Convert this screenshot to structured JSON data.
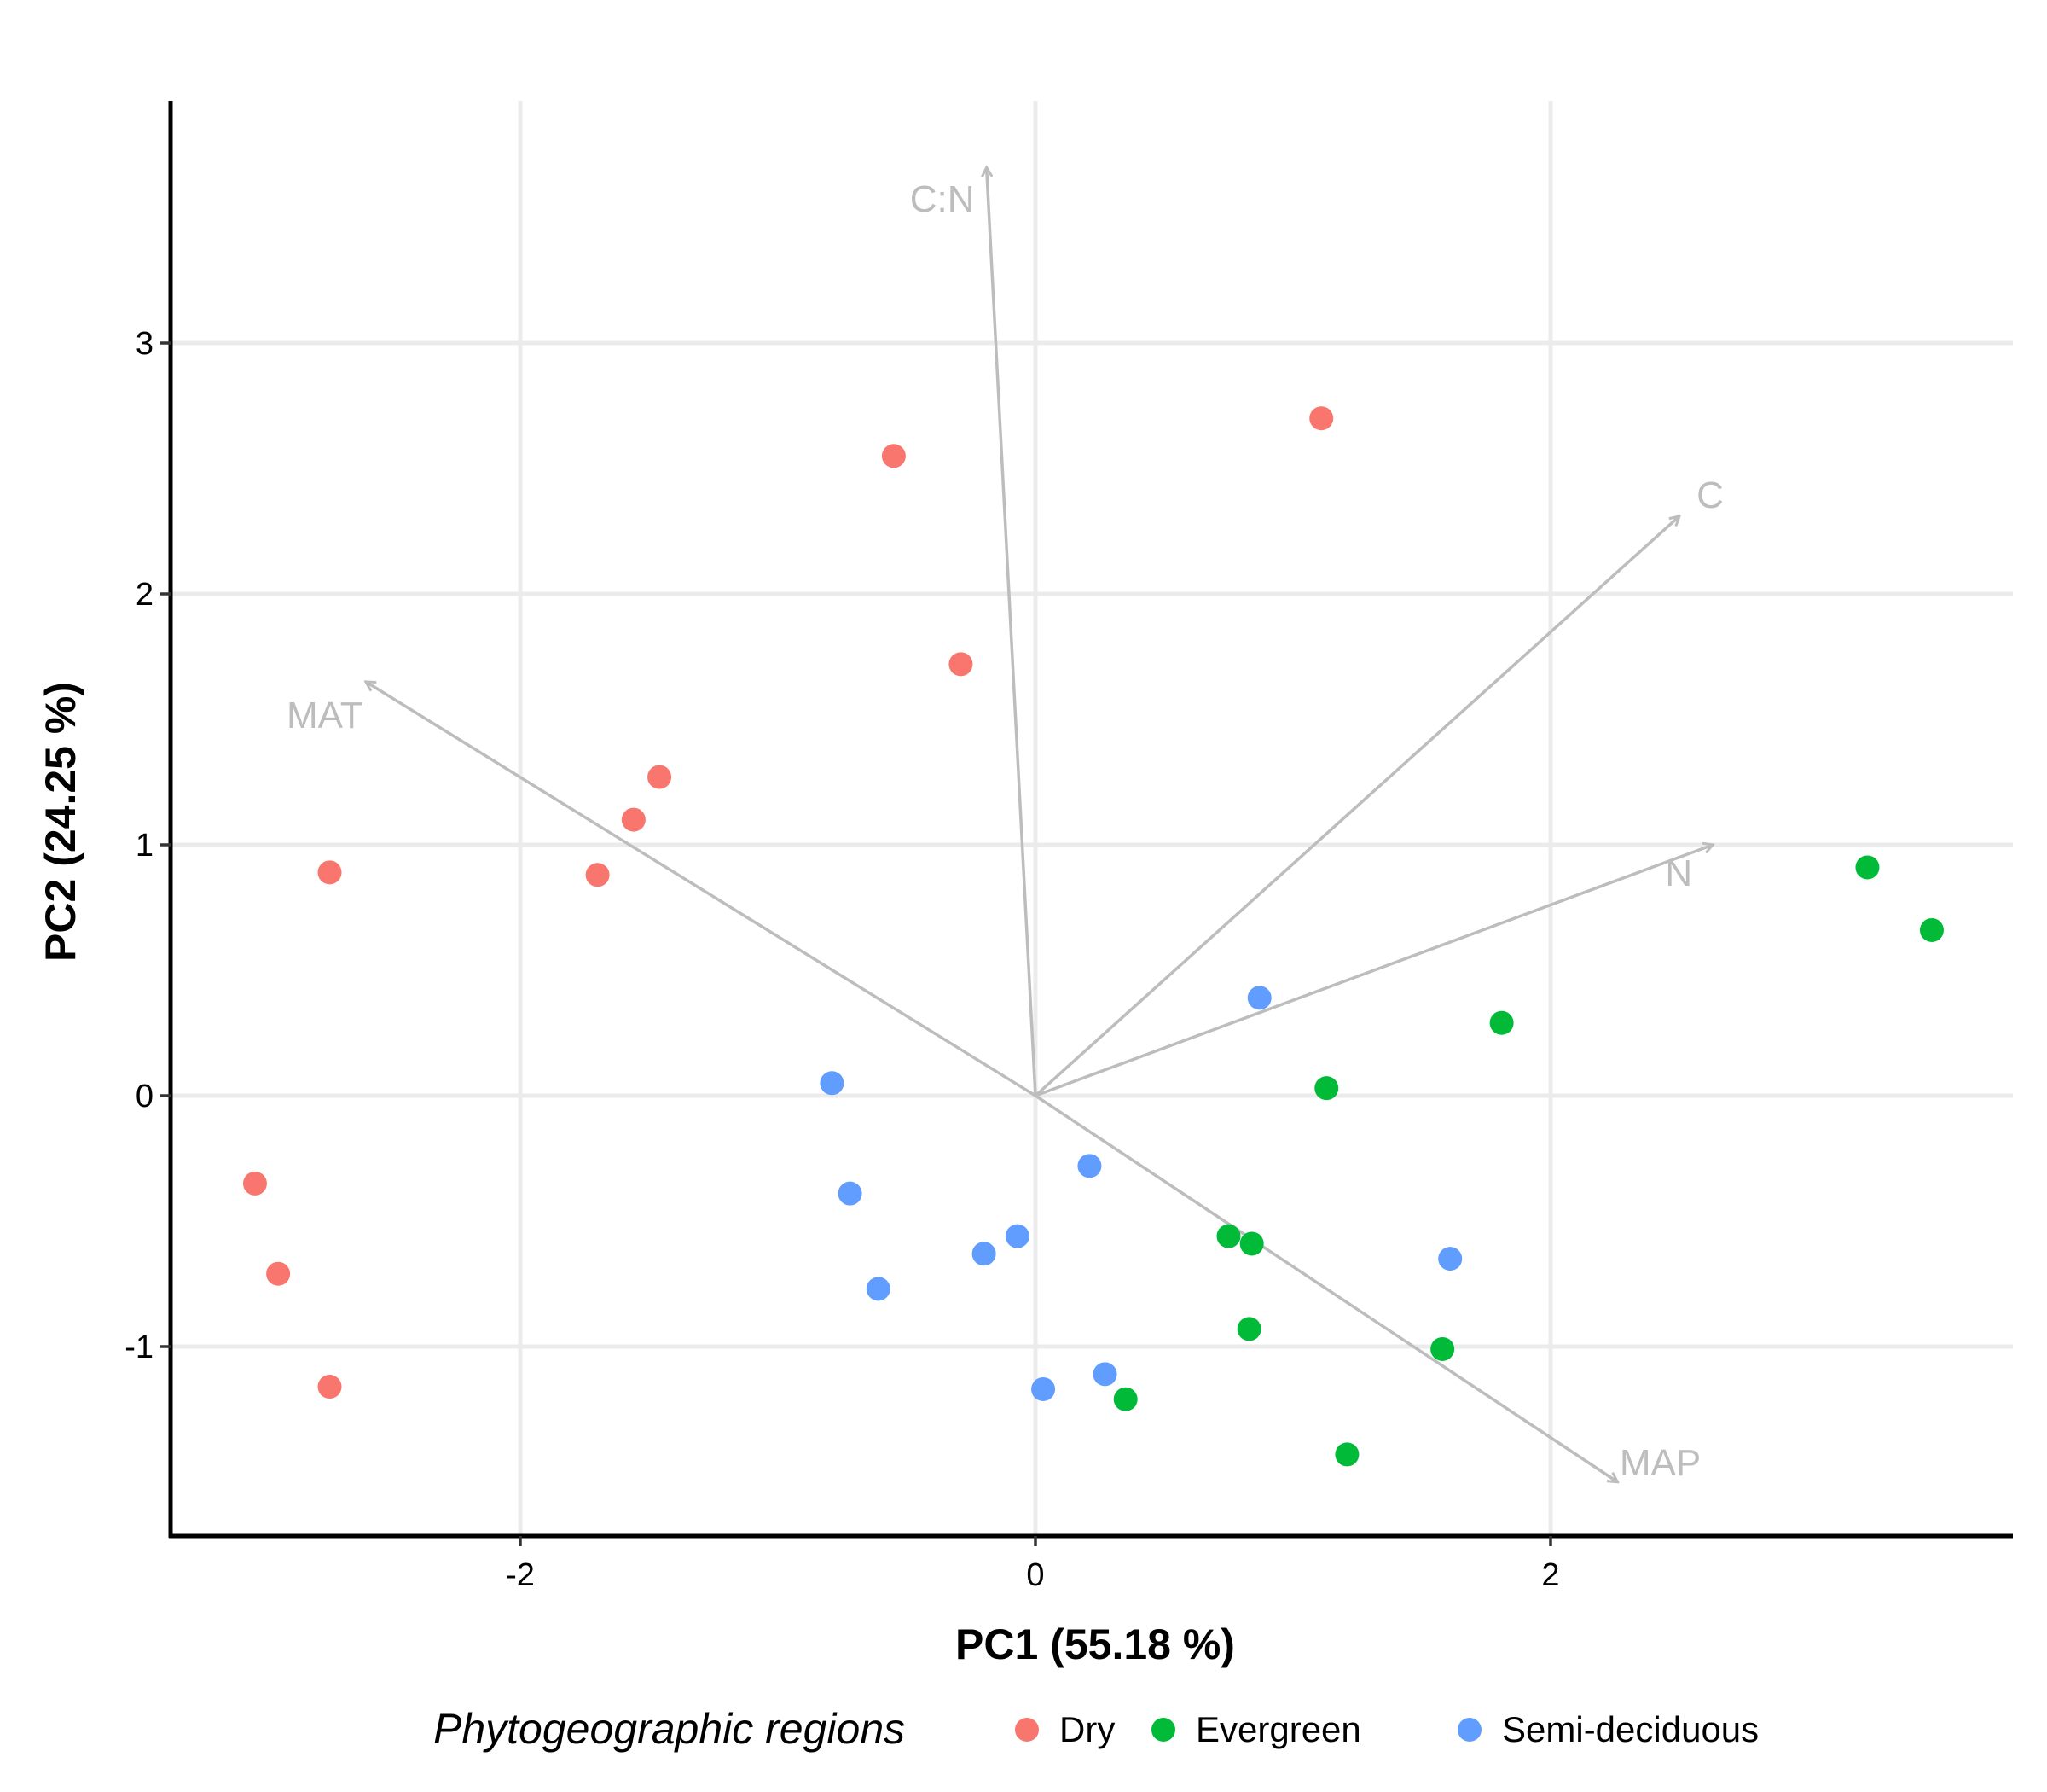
{
  "chart_data": {
    "type": "scatter",
    "title": "",
    "xlabel": "PC1 (55.18 %)",
    "ylabel": "PC2 (24.25 %)",
    "xlim": [
      -3.3,
      3.8
    ],
    "ylim": [
      -1.75,
      4.0
    ],
    "xticks": [
      -2,
      0,
      2
    ],
    "xtick_labels": [
      "-2",
      "0",
      "2"
    ],
    "yticks": [
      -1,
      0,
      1,
      2,
      3
    ],
    "ytick_labels": [
      "-1",
      "0",
      "1",
      "2",
      "3"
    ],
    "grid": true,
    "legend": {
      "title": "Phytogeographic regions",
      "position": "bottom"
    },
    "series": [
      {
        "name": "Dry",
        "color": "#F8766D",
        "points": [
          {
            "x": -3.03,
            "y": -0.35
          },
          {
            "x": -2.94,
            "y": -0.71
          },
          {
            "x": -2.74,
            "y": -1.16
          },
          {
            "x": -2.74,
            "y": 0.89
          },
          {
            "x": -1.7,
            "y": 0.88
          },
          {
            "x": -1.56,
            "y": 1.1
          },
          {
            "x": -1.46,
            "y": 1.27
          },
          {
            "x": -0.55,
            "y": 2.55
          },
          {
            "x": -0.29,
            "y": 1.72
          },
          {
            "x": 1.11,
            "y": 2.7
          }
        ]
      },
      {
        "name": "Evergreen",
        "color": "#00BA38",
        "points": [
          {
            "x": 0.35,
            "y": -1.21
          },
          {
            "x": 0.75,
            "y": -0.56
          },
          {
            "x": 0.84,
            "y": -0.59
          },
          {
            "x": 0.83,
            "y": -0.93
          },
          {
            "x": 1.13,
            "y": 0.03
          },
          {
            "x": 1.21,
            "y": -1.43
          },
          {
            "x": 1.58,
            "y": -1.01
          },
          {
            "x": 1.81,
            "y": 0.29
          },
          {
            "x": 3.23,
            "y": 0.91
          },
          {
            "x": 3.48,
            "y": 0.66
          }
        ]
      },
      {
        "name": "Semi-deciduous",
        "color": "#619CFF",
        "points": [
          {
            "x": -0.79,
            "y": 0.05
          },
          {
            "x": -0.72,
            "y": -0.39
          },
          {
            "x": -0.61,
            "y": -0.77
          },
          {
            "x": -0.2,
            "y": -0.63
          },
          {
            "x": -0.07,
            "y": -0.56
          },
          {
            "x": 0.03,
            "y": -1.17
          },
          {
            "x": 0.21,
            "y": -0.28
          },
          {
            "x": 0.27,
            "y": -1.11
          },
          {
            "x": 0.87,
            "y": 0.39
          },
          {
            "x": 1.61,
            "y": -0.65
          }
        ]
      }
    ],
    "loadings": [
      {
        "name": "C:N",
        "x": -0.19,
        "y": 3.7
      },
      {
        "name": "C",
        "x": 2.5,
        "y": 2.31
      },
      {
        "name": "MAT",
        "x": -2.6,
        "y": 1.65
      },
      {
        "name": "N",
        "x": 2.63,
        "y": 1.0
      },
      {
        "name": "MAP",
        "x": 2.26,
        "y": -1.54
      }
    ],
    "loading_color": "#bdbdbd"
  }
}
